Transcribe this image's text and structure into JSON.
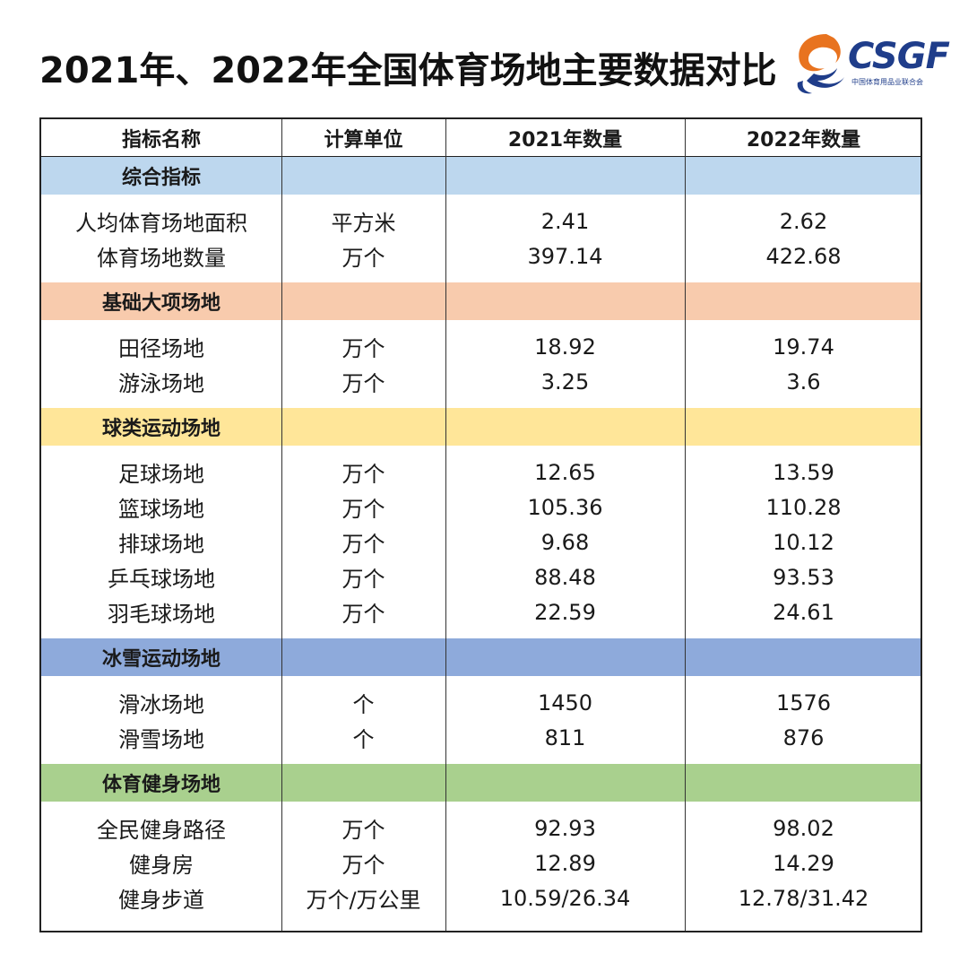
{
  "title": "2021年、2022年全国体育场地主要数据对比",
  "logo": {
    "text": "CSGF",
    "sub": "中国体育用品业联合会",
    "colors": {
      "swirl": "#e8731f",
      "text": "#1f3d8a"
    }
  },
  "table": {
    "headers": [
      "指标名称",
      "计算单位",
      "2021年数量",
      "2022年数量"
    ],
    "sections": [
      {
        "name": "综合指标",
        "color": "#bdd7ee",
        "rows": [
          [
            "人均体育场地面积",
            "平方米",
            "2.41",
            "2.62"
          ],
          [
            "体育场地数量",
            "万个",
            "397.14",
            "422.68"
          ]
        ]
      },
      {
        "name": "基础大项场地",
        "color": "#f8cbad",
        "rows": [
          [
            "田径场地",
            "万个",
            "18.92",
            "19.74"
          ],
          [
            "游泳场地",
            "万个",
            "3.25",
            "3.6"
          ]
        ]
      },
      {
        "name": "球类运动场地",
        "color": "#ffe699",
        "rows": [
          [
            "足球场地",
            "万个",
            "12.65",
            "13.59"
          ],
          [
            "篮球场地",
            "万个",
            "105.36",
            "110.28"
          ],
          [
            "排球场地",
            "万个",
            "9.68",
            "10.12"
          ],
          [
            "乒乓球场地",
            "万个",
            "88.48",
            "93.53"
          ],
          [
            "羽毛球场地",
            "万个",
            "22.59",
            "24.61"
          ]
        ]
      },
      {
        "name": "冰雪运动场地",
        "color": "#8eaadb",
        "rows": [
          [
            "滑冰场地",
            "个",
            "1450",
            "1576"
          ],
          [
            "滑雪场地",
            "个",
            "811",
            "876"
          ]
        ]
      },
      {
        "name": "体育健身场地",
        "color": "#a9d08e",
        "rows": [
          [
            "全民健身路径",
            "万个",
            "92.93",
            "98.02"
          ],
          [
            "健身房",
            "万个",
            "12.89",
            "14.29"
          ],
          [
            "健身步道",
            "万个/万公里",
            "10.59/26.34",
            "12.78/31.42"
          ]
        ]
      }
    ]
  }
}
